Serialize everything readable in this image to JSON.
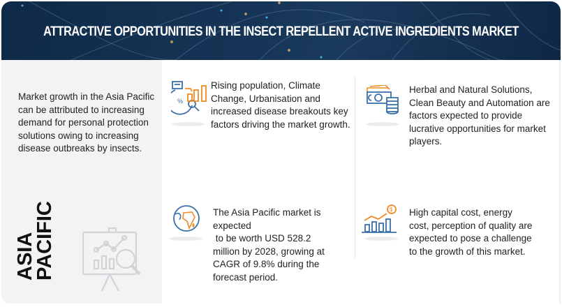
{
  "header": {
    "title": "ATTRACTIVE OPPORTUNITIES IN THE INSECT REPELLENT ACTIVE INGREDIENTS MARKET"
  },
  "left": {
    "description": "Market growth in the Asia Pacific can be attributed to increasing demand for personal protection solutions owing to increasing disease outbreaks by insects.",
    "region_line1": "ASIA",
    "region_line2": "PACIFIC",
    "icon": "presentation-chart-magnifier-icon"
  },
  "cards": [
    {
      "icon": "analytics-chart-icon",
      "text": "Rising population, Climate Change, Urbanisation and increased disease breakouts key factors driving the market growth."
    },
    {
      "icon": "money-coins-icon",
      "text": "Herbal and Natural Solutions, Clean Beauty and Automation are factors expected to provide lucrative opportunities for market players."
    },
    {
      "icon": "globe-icon",
      "text": "The Asia Pacific market is expected\n to be worth USD 528.2 million by 2028, growing at CAGR of 9.8% during the forecast period."
    },
    {
      "icon": "growth-bar-chart-dollar-icon",
      "text": "High capital cost, energy cost, perception of quality are expected to pose a challenge to the growth of this market."
    }
  ],
  "colors": {
    "header_bg": "#163556",
    "icon_blue": "#3b6fa8",
    "icon_orange": "#f08a24",
    "panel_gray": "#f3f3f3"
  }
}
